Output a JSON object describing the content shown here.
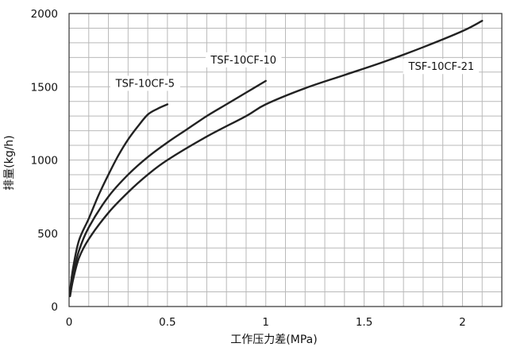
{
  "chart_data": {
    "type": "line",
    "xlabel": "工作压力差(MPa)",
    "ylabel": "排量(kg/h)",
    "xlim": [
      0,
      2.2
    ],
    "ylim": [
      0,
      2000
    ],
    "x_ticks": [
      0,
      0.5,
      1,
      1.5,
      2
    ],
    "x_tick_labels": [
      "0",
      "0.5",
      "1",
      "1.5",
      "2"
    ],
    "y_ticks": [
      0,
      500,
      1000,
      1500,
      2000
    ],
    "y_tick_labels": [
      "0",
      "500",
      "1000",
      "1500",
      "2000"
    ],
    "grid": true,
    "series": [
      {
        "name": "TSF-10CF-5",
        "points": [
          [
            0.005,
            110
          ],
          [
            0.02,
            260
          ],
          [
            0.05,
            450
          ],
          [
            0.1,
            600
          ],
          [
            0.15,
            760
          ],
          [
            0.2,
            900
          ],
          [
            0.25,
            1030
          ],
          [
            0.3,
            1140
          ],
          [
            0.35,
            1230
          ],
          [
            0.4,
            1310
          ],
          [
            0.45,
            1350
          ],
          [
            0.5,
            1380
          ]
        ]
      },
      {
        "name": "TSF-10CF-10",
        "points": [
          [
            0.005,
            90
          ],
          [
            0.02,
            210
          ],
          [
            0.05,
            380
          ],
          [
            0.1,
            540
          ],
          [
            0.2,
            750
          ],
          [
            0.3,
            900
          ],
          [
            0.4,
            1020
          ],
          [
            0.5,
            1120
          ],
          [
            0.6,
            1210
          ],
          [
            0.7,
            1300
          ],
          [
            0.8,
            1380
          ],
          [
            0.9,
            1460
          ],
          [
            1.0,
            1540
          ]
        ]
      },
      {
        "name": "TSF-10CF-21",
        "points": [
          [
            0.005,
            70
          ],
          [
            0.02,
            180
          ],
          [
            0.05,
            330
          ],
          [
            0.1,
            460
          ],
          [
            0.2,
            640
          ],
          [
            0.3,
            780
          ],
          [
            0.4,
            900
          ],
          [
            0.5,
            1000
          ],
          [
            0.7,
            1160
          ],
          [
            0.9,
            1300
          ],
          [
            1.0,
            1380
          ],
          [
            1.2,
            1490
          ],
          [
            1.4,
            1580
          ],
          [
            1.6,
            1670
          ],
          [
            1.8,
            1770
          ],
          [
            2.0,
            1880
          ],
          [
            2.1,
            1950
          ]
        ]
      }
    ],
    "series_label_positions": [
      "near-end",
      "near-end",
      "top-right"
    ]
  }
}
